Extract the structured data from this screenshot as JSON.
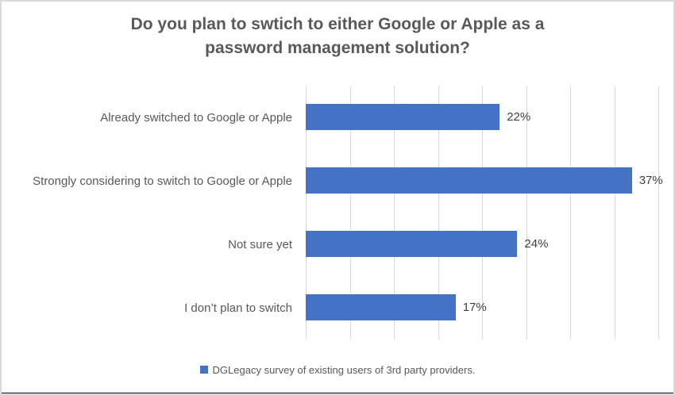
{
  "chart_data": {
    "type": "bar",
    "orientation": "horizontal",
    "title": "Do you plan to swtich to either Google or Apple as a password management solution?",
    "categories": [
      "Already switched to Google or Apple",
      "Strongly considering to switch to Google or Apple",
      "Not sure yet",
      "I don’t plan to switch"
    ],
    "values": [
      22,
      37,
      24,
      17
    ],
    "data_labels": [
      "22%",
      "37%",
      "24%",
      "17%"
    ],
    "xlim": [
      0,
      40
    ],
    "gridline_step": 5,
    "grid": "vertical-gridlines-on",
    "xlabel": "",
    "ylabel": "",
    "legend": {
      "label": "DGLegacy survey of existing users of 3rd party providers.",
      "position": "bottom"
    },
    "colors": {
      "bar": "#4472c4",
      "title_text": "#595959",
      "category_text": "#595959",
      "data_label_text": "#404040",
      "gridline": "#d9d9d9",
      "frame_border": "#dadada"
    }
  }
}
